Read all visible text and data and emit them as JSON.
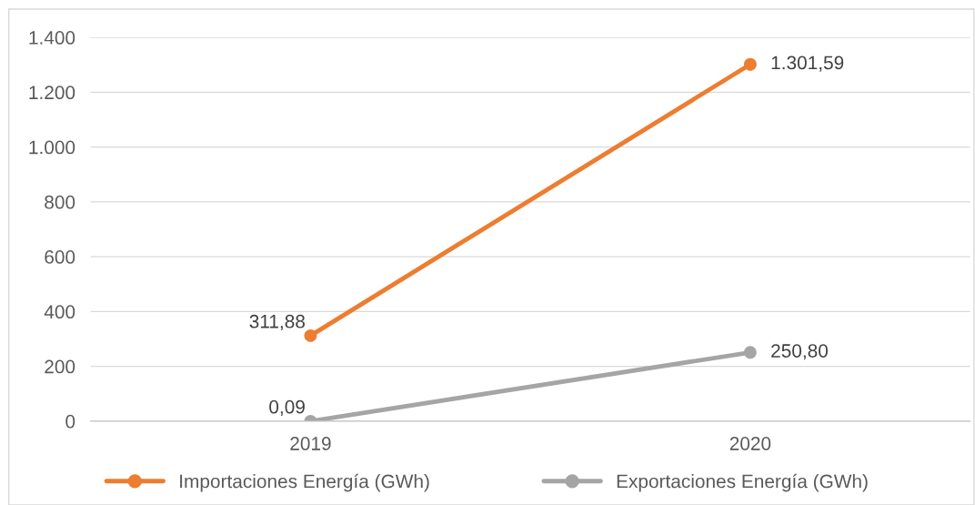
{
  "chart_data": {
    "type": "line",
    "categories": [
      "2019",
      "2020"
    ],
    "series": [
      {
        "name": "Importaciones Energía (GWh)",
        "color": "#ed7d31",
        "values": [
          311.88,
          1301.59
        ],
        "value_labels": [
          "311,88",
          "1.301,59"
        ]
      },
      {
        "name": "Exportaciones Energía (GWh)",
        "color": "#a5a5a5",
        "values": [
          0.09,
          250.8
        ],
        "value_labels": [
          "0,09",
          "250,80"
        ]
      }
    ],
    "ylim": [
      0,
      1400
    ],
    "yticks": [
      0,
      200,
      400,
      600,
      800,
      {
        "value": 1000,
        "label": "1.000"
      },
      {
        "value": 1200,
        "label": "1.200"
      },
      {
        "value": 1400,
        "label": "1.400"
      }
    ],
    "grid": "y",
    "legend": "bottom",
    "marker": "circle",
    "line_style": "solid"
  }
}
